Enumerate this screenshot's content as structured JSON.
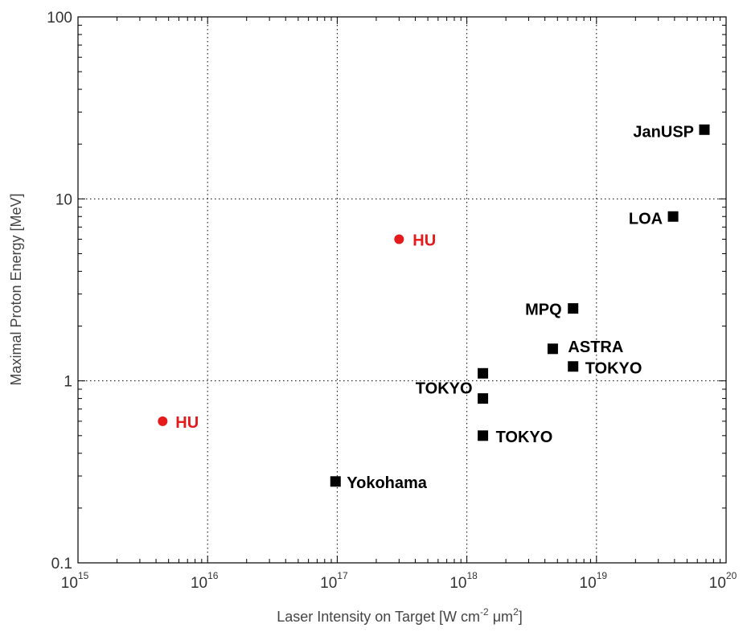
{
  "chart_data": {
    "type": "scatter",
    "title": "",
    "xlabel": "Laser Intensity on Target [W cm",
    "xlabel_exp1": "-2",
    "xlabel_mid": " μm",
    "xlabel_exp2": "2",
    "xlabel_end": "]",
    "ylabel": "Maximal Proton Energy [MeV]",
    "xscale": "log",
    "yscale": "log",
    "xlim": [
      1000000000000000.0,
      1e+20
    ],
    "ylim": [
      0.1,
      100
    ],
    "grid": true,
    "x_tick_labels": [
      {
        "base": "10",
        "exp": "15"
      },
      {
        "base": "10",
        "exp": "16"
      },
      {
        "base": "10",
        "exp": "17"
      },
      {
        "base": "10",
        "exp": "18"
      },
      {
        "base": "10",
        "exp": "19"
      },
      {
        "base": "10",
        "exp": "20"
      }
    ],
    "y_tick_labels": [
      "0.1",
      "1",
      "10",
      "100"
    ],
    "series": [
      {
        "name": "HU",
        "marker": "circle",
        "color": "#e41a1c",
        "points": [
          {
            "x": 4500000000000000.0,
            "y": 0.6,
            "label": "HU"
          },
          {
            "x": 3e+17,
            "y": 6.0,
            "label": "HU"
          }
        ]
      },
      {
        "name": "",
        "marker": "square",
        "color": "#000000",
        "points": [
          {
            "x": 9.7e+16,
            "y": 0.28,
            "label": "Yokohama"
          },
          {
            "x": 1.33e+18,
            "y": 1.1,
            "label": "TOKYO"
          },
          {
            "x": 1.33e+18,
            "y": 0.8,
            "label": ""
          },
          {
            "x": 1.33e+18,
            "y": 0.5,
            "label": "TOKYO"
          },
          {
            "x": 4.6e+18,
            "y": 1.5,
            "label": "ASTRA"
          },
          {
            "x": 6.6e+18,
            "y": 2.5,
            "label": "MPQ"
          },
          {
            "x": 6.6e+18,
            "y": 1.2,
            "label": "TOKYO"
          },
          {
            "x": 3.9e+19,
            "y": 8.0,
            "label": "LOA"
          },
          {
            "x": 6.8e+19,
            "y": 24.0,
            "label": "JanUSP"
          }
        ]
      }
    ]
  }
}
